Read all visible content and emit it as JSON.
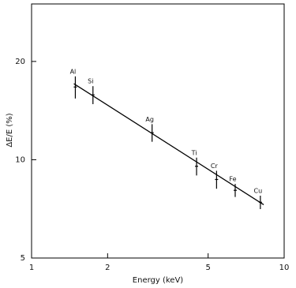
{
  "chart_data": {
    "type": "scatter",
    "xlabel": "Energy (keV)",
    "ylabel": "ΔE/E (%)",
    "x": [
      1.49,
      1.75,
      3.0,
      4.5,
      5.4,
      6.4,
      8.05
    ],
    "values": [
      16.7,
      15.8,
      12.1,
      9.55,
      8.7,
      8.06,
      7.41
    ],
    "errors": [
      1.3,
      1.0,
      0.75,
      0.6,
      0.55,
      0.37,
      0.35
    ],
    "point_labels": [
      "Al",
      "Si",
      "Ag",
      "Ti",
      "Cr",
      "Fe",
      "Cu"
    ],
    "fit_line": {
      "x": [
        1.47,
        8.3
      ],
      "values": [
        17.1,
        7.28
      ]
    },
    "color": "#000000",
    "xscale": "log",
    "yscale": "log",
    "xlim": [
      1,
      10
    ],
    "ylim": [
      5,
      30
    ],
    "xticks": [
      1,
      2,
      5,
      10
    ],
    "yticks": [
      5,
      10,
      20
    ]
  }
}
